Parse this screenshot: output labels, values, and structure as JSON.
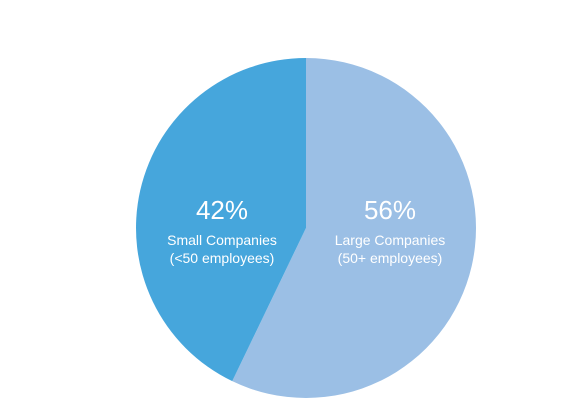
{
  "chart_data": {
    "type": "pie",
    "slices": [
      {
        "percent_label": "56%",
        "value": 56,
        "label_line1": "Large Companies",
        "label_line2": "(50+ employees)",
        "color": "#9bbfe5"
      },
      {
        "percent_label": "42%",
        "value": 42,
        "label_line1": "Small Companies",
        "label_line2": "(<50 employees)",
        "color": "#46a6dc"
      }
    ],
    "start_angle": "12 o'clock",
    "direction": "clockwise",
    "legend": "none"
  }
}
